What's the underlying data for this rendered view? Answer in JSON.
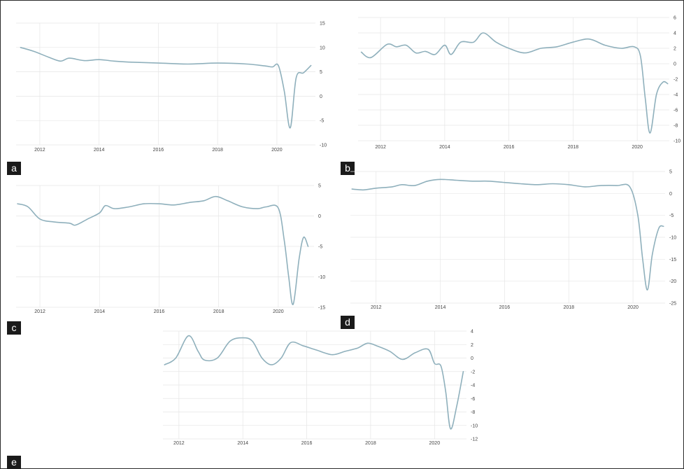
{
  "colors": {
    "line": "#8fb0bc",
    "grid": "#e6e6e6",
    "label_bg": "#1a1a1a",
    "label_text": "#ffffff"
  },
  "chart_data": [
    {
      "id": "a",
      "panel_label": "a",
      "type": "line",
      "xlim": [
        2011.2,
        2021.3
      ],
      "ylim": [
        -10,
        15
      ],
      "x_ticks": [
        2012,
        2014,
        2016,
        2018,
        2020
      ],
      "y_ticks": [
        15,
        10,
        5,
        0,
        -5,
        -10
      ],
      "series": [
        {
          "x": [
            2011.35,
            2011.8,
            2012.3,
            2012.7,
            2013.0,
            2013.5,
            2014.0,
            2014.5,
            2015.0,
            2016.0,
            2017.0,
            2018.0,
            2019.0,
            2019.6,
            2019.85,
            2020.05,
            2020.25,
            2020.45,
            2020.65,
            2020.9,
            2021.15
          ],
          "y": [
            10,
            9.2,
            8.0,
            7.2,
            7.8,
            7.3,
            7.5,
            7.2,
            7.0,
            6.8,
            6.6,
            6.8,
            6.6,
            6.2,
            6.0,
            6.3,
            1.0,
            -6.5,
            3.8,
            4.8,
            6.3
          ]
        }
      ]
    },
    {
      "id": "b",
      "panel_label": "b",
      "type": "line",
      "xlim": [
        2011.3,
        2021.0
      ],
      "ylim": [
        -10,
        6
      ],
      "x_ticks": [
        2012,
        2014,
        2016,
        2018,
        2020
      ],
      "y_ticks": [
        6,
        4,
        2,
        0,
        -2,
        -4,
        -6,
        -8,
        -10
      ],
      "series": [
        {
          "x": [
            2011.4,
            2011.7,
            2012.2,
            2012.5,
            2012.8,
            2013.1,
            2013.4,
            2013.7,
            2014.0,
            2014.2,
            2014.5,
            2014.9,
            2015.2,
            2015.6,
            2016.0,
            2016.5,
            2017.0,
            2017.5,
            2018.0,
            2018.5,
            2019.0,
            2019.5,
            2019.9,
            2020.1,
            2020.25,
            2020.4,
            2020.6,
            2020.8,
            2020.95
          ],
          "y": [
            1.5,
            0.8,
            2.5,
            2.2,
            2.4,
            1.4,
            1.6,
            1.2,
            2.4,
            1.2,
            2.8,
            2.8,
            4.0,
            2.8,
            2.0,
            1.4,
            2.0,
            2.2,
            2.8,
            3.2,
            2.4,
            2.0,
            2.2,
            1.0,
            -4.5,
            -9.0,
            -4.0,
            -2.4,
            -2.6
          ]
        }
      ]
    },
    {
      "id": "c",
      "panel_label": "c",
      "type": "line",
      "xlim": [
        2011.2,
        2021.2
      ],
      "ylim": [
        -15,
        5
      ],
      "x_ticks": [
        2012,
        2014,
        2016,
        2018,
        2020
      ],
      "y_ticks": [
        5,
        0,
        -5,
        -10,
        -15
      ],
      "series": [
        {
          "x": [
            2011.25,
            2011.6,
            2012.0,
            2012.5,
            2013.0,
            2013.2,
            2013.6,
            2014.0,
            2014.2,
            2014.5,
            2015.0,
            2015.5,
            2016.0,
            2016.5,
            2017.0,
            2017.5,
            2017.9,
            2018.3,
            2018.8,
            2019.3,
            2019.6,
            2020.0,
            2020.2,
            2020.35,
            2020.5,
            2020.7,
            2020.85,
            2021.0
          ],
          "y": [
            2.0,
            1.5,
            -0.5,
            -1.0,
            -1.2,
            -1.5,
            -0.5,
            0.5,
            1.7,
            1.2,
            1.5,
            2.0,
            2.0,
            1.8,
            2.2,
            2.5,
            3.2,
            2.5,
            1.5,
            1.2,
            1.5,
            1.3,
            -4.0,
            -10.0,
            -14.5,
            -7.0,
            -3.5,
            -5.0
          ]
        }
      ]
    },
    {
      "id": "d",
      "panel_label": "d",
      "type": "line",
      "xlim": [
        2011.2,
        2021.0
      ],
      "ylim": [
        -25,
        5
      ],
      "x_ticks": [
        2012,
        2014,
        2016,
        2018,
        2020
      ],
      "y_ticks": [
        5,
        0,
        -5,
        -10,
        -15,
        -20,
        -25
      ],
      "series": [
        {
          "x": [
            2011.25,
            2011.6,
            2012.0,
            2012.5,
            2012.8,
            2013.2,
            2013.6,
            2014.0,
            2014.5,
            2015.0,
            2015.5,
            2016.0,
            2016.5,
            2017.0,
            2017.5,
            2018.0,
            2018.5,
            2019.0,
            2019.5,
            2019.9,
            2020.15,
            2020.3,
            2020.45,
            2020.6,
            2020.8,
            2020.95
          ],
          "y": [
            1.0,
            0.8,
            1.2,
            1.5,
            2.0,
            1.8,
            2.8,
            3.2,
            3.0,
            2.8,
            2.8,
            2.5,
            2.2,
            2.0,
            2.2,
            2.0,
            1.5,
            1.8,
            1.8,
            1.5,
            -5.0,
            -15.0,
            -22.0,
            -14.0,
            -8.0,
            -7.5
          ]
        }
      ]
    },
    {
      "id": "e",
      "panel_label": "e",
      "type": "line",
      "xlim": [
        2011.5,
        2021.0
      ],
      "ylim": [
        -12,
        4
      ],
      "x_ticks": [
        2012,
        2014,
        2016,
        2018,
        2020
      ],
      "y_ticks": [
        4,
        2,
        0,
        -2,
        -4,
        -6,
        -8,
        -10,
        -12
      ],
      "series": [
        {
          "x": [
            2011.55,
            2011.9,
            2012.3,
            2012.6,
            2012.8,
            2013.2,
            2013.6,
            2014.0,
            2014.3,
            2014.6,
            2014.9,
            2015.2,
            2015.5,
            2015.9,
            2016.3,
            2016.8,
            2017.2,
            2017.6,
            2017.9,
            2018.2,
            2018.6,
            2019.0,
            2019.4,
            2019.8,
            2020.0,
            2020.2,
            2020.35,
            2020.5,
            2020.7,
            2020.9
          ],
          "y": [
            -1.0,
            0.0,
            3.3,
            1.0,
            -0.3,
            0.0,
            2.5,
            3.0,
            2.5,
            0.0,
            -1.0,
            0.0,
            2.3,
            1.8,
            1.2,
            0.5,
            1.0,
            1.5,
            2.2,
            1.8,
            1.0,
            -0.2,
            0.8,
            1.3,
            -0.8,
            -1.2,
            -5.0,
            -10.5,
            -7.0,
            -2.0
          ]
        }
      ]
    }
  ]
}
